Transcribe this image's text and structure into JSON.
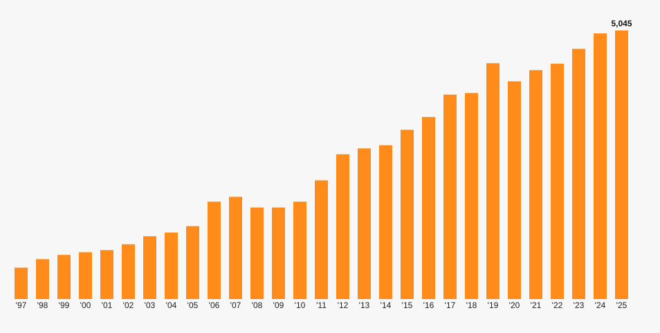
{
  "chart_data": {
    "type": "bar",
    "title": "",
    "xlabel": "",
    "ylabel": "",
    "categories": [
      "'97",
      "'98",
      "'99",
      "'00",
      "'01",
      "'02",
      "'03",
      "'04",
      "'05",
      "'06",
      "'07",
      "'08",
      "'09",
      "'10",
      "'11",
      "'12",
      "'13",
      "'14",
      "'15",
      "'16",
      "'17",
      "'18",
      "'19",
      "'20",
      "'21",
      "'22",
      "'23",
      "'24",
      "'25"
    ],
    "values": [
      590,
      750,
      830,
      880,
      920,
      1030,
      1180,
      1250,
      1370,
      1830,
      1920,
      1720,
      1720,
      1830,
      2230,
      2720,
      2830,
      2890,
      3180,
      3420,
      3840,
      3870,
      4430,
      4090,
      4300,
      4420,
      4700,
      4990,
      5045
    ],
    "data_labels": [
      {
        "category": "'25",
        "text": "5,045"
      }
    ],
    "ylim": [
      0,
      5045
    ],
    "grid": false,
    "legend": "none",
    "bar_color": "#ff8c1a"
  }
}
